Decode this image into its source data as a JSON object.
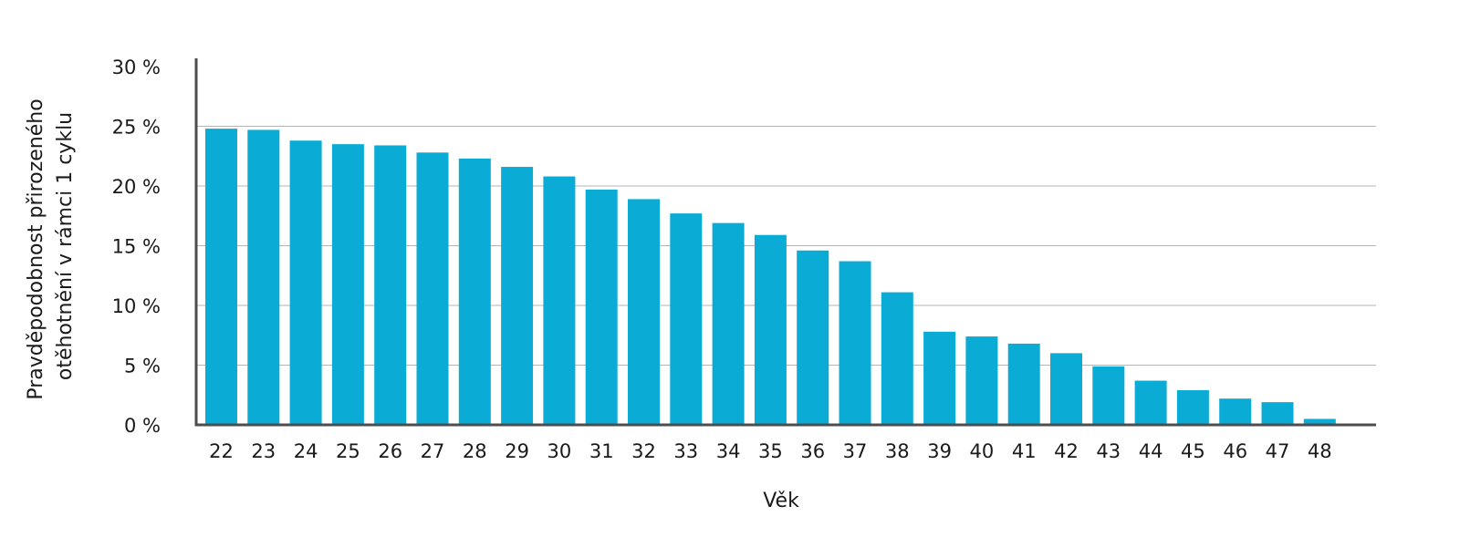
{
  "chart_data": {
    "type": "bar",
    "title": "",
    "xlabel": "Věk",
    "ylabel_lines": [
      "Pravděpodobnost přirozeného",
      "otěhotnění v rámci 1 cyklu"
    ],
    "categories": [
      "22",
      "23",
      "24",
      "25",
      "26",
      "27",
      "28",
      "29",
      "30",
      "31",
      "32",
      "33",
      "34",
      "35",
      "36",
      "37",
      "38",
      "39",
      "40",
      "41",
      "42",
      "43",
      "44",
      "45",
      "46",
      "47",
      "48"
    ],
    "values": [
      24.8,
      24.7,
      23.8,
      23.5,
      23.4,
      22.8,
      22.3,
      21.6,
      20.8,
      19.7,
      18.9,
      17.7,
      16.9,
      15.9,
      14.6,
      13.7,
      11.1,
      7.8,
      7.4,
      6.8,
      6.0,
      4.9,
      3.7,
      2.9,
      2.2,
      1.9,
      0.5
    ],
    "ylim": [
      0,
      30
    ],
    "yticks": [
      {
        "value": 0,
        "label": "0 %"
      },
      {
        "value": 5,
        "label": "5 %"
      },
      {
        "value": 10,
        "label": "10 %"
      },
      {
        "value": 15,
        "label": "15 %"
      },
      {
        "value": 20,
        "label": "20 %"
      },
      {
        "value": 25,
        "label": "25 %"
      },
      {
        "value": 30,
        "label": "30 %"
      }
    ],
    "grid": true,
    "colors": {
      "bar": "#0aacd6",
      "axis": "#4d4d4d",
      "grid": "#b5b5b5"
    }
  }
}
